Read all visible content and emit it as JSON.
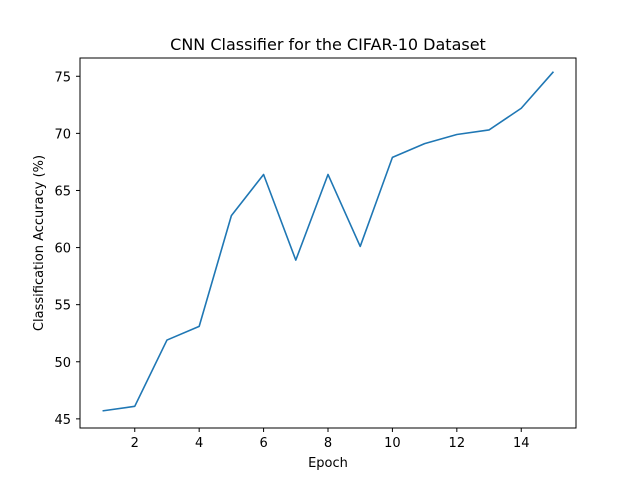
{
  "chart_data": {
    "type": "line",
    "title": "CNN Classifier for the CIFAR-10 Dataset",
    "xlabel": "Epoch",
    "ylabel": "Classification Accuracy (%)",
    "xlim": [
      0.3,
      15.7
    ],
    "ylim": [
      44.2,
      76.6
    ],
    "x_ticks": [
      2,
      4,
      6,
      8,
      10,
      12,
      14
    ],
    "y_ticks": [
      45,
      50,
      55,
      60,
      65,
      70,
      75
    ],
    "grid": false,
    "series": [
      {
        "color": "#1f77b4",
        "x": [
          1,
          2,
          3,
          4,
          5,
          6,
          7,
          8,
          9,
          10,
          11,
          12,
          13,
          14,
          15
        ],
        "values": [
          45.7,
          46.1,
          51.9,
          53.1,
          62.8,
          66.4,
          58.9,
          66.4,
          60.1,
          67.9,
          69.1,
          69.9,
          70.3,
          72.2,
          75.4
        ]
      }
    ]
  }
}
